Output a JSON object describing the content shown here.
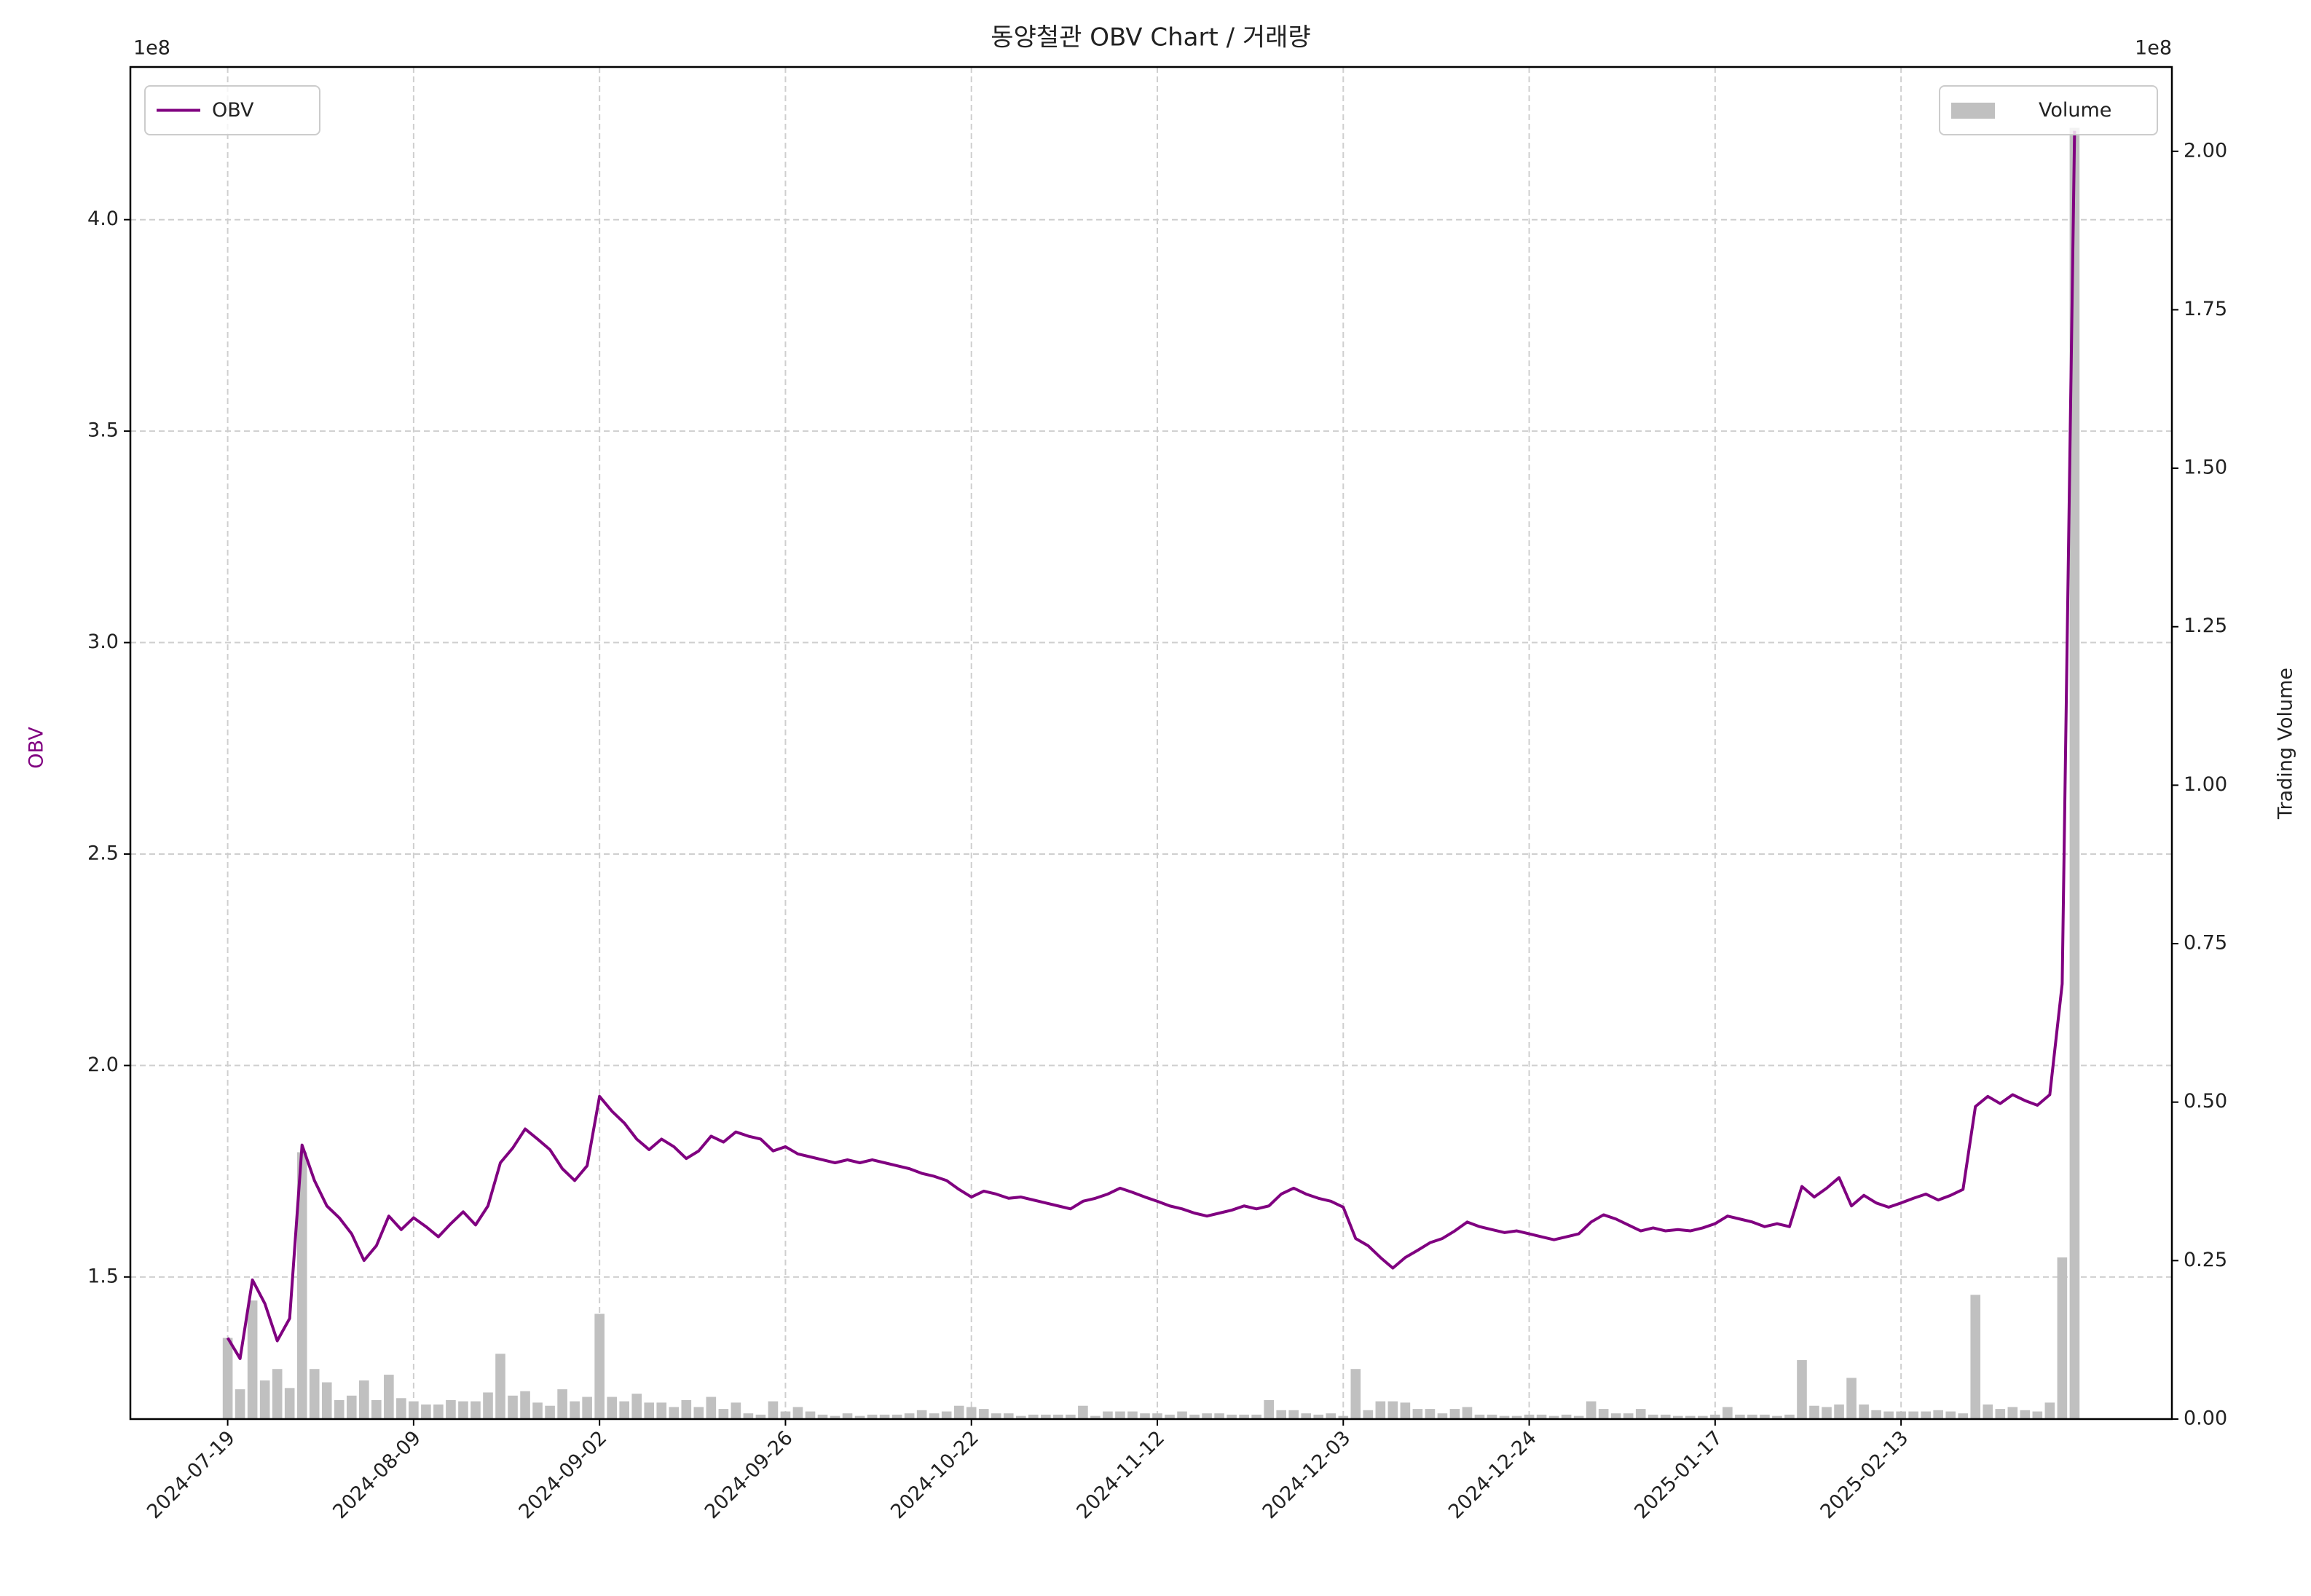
{
  "chart_data": {
    "type": "line",
    "title": "동양철관 OBV Chart / 거래량",
    "ylabel": "OBV",
    "ylabel_color": "#800080",
    "y2label": "Trading Volume",
    "y_offset_label": "1e8",
    "y2_offset_label": "1e8",
    "grid": true,
    "categories": [
      "2024-07-19",
      null,
      null,
      null,
      null,
      null,
      null,
      null,
      null,
      null,
      null,
      null,
      null,
      null,
      null,
      "2024-08-09",
      null,
      null,
      null,
      null,
      null,
      null,
      null,
      null,
      null,
      null,
      null,
      null,
      null,
      null,
      "2024-09-02",
      null,
      null,
      null,
      null,
      null,
      null,
      null,
      null,
      null,
      null,
      null,
      null,
      null,
      null,
      "2024-09-26",
      null,
      null,
      null,
      null,
      null,
      null,
      null,
      null,
      null,
      null,
      null,
      null,
      null,
      null,
      "2024-10-22",
      null,
      null,
      null,
      null,
      null,
      null,
      null,
      null,
      null,
      null,
      null,
      null,
      null,
      null,
      "2024-11-12",
      null,
      null,
      null,
      null,
      null,
      null,
      null,
      null,
      null,
      null,
      null,
      null,
      null,
      null,
      "2024-12-03",
      null,
      null,
      null,
      null,
      null,
      null,
      null,
      null,
      null,
      null,
      null,
      null,
      null,
      null,
      "2024-12-24",
      null,
      null,
      null,
      null,
      null,
      null,
      null,
      null,
      null,
      null,
      null,
      null,
      null,
      null,
      "2025-01-17",
      null,
      null,
      null,
      null,
      null,
      null,
      null,
      null,
      null,
      null,
      null,
      null,
      null,
      null,
      "2025-02-13",
      null,
      null,
      null,
      null,
      null,
      null,
      null,
      null,
      null,
      null,
      null,
      null,
      null,
      null
    ],
    "series": [
      {
        "name": "OBV",
        "type": "line",
        "color": "#800080",
        "legend": "upper left",
        "values": [
          135600000,
          130700000,
          149300000,
          143700000,
          134900000,
          140200000,
          181200000,
          172800000,
          166800000,
          164000000,
          160200000,
          153900000,
          157400000,
          164400000,
          161200000,
          164000000,
          161900000,
          159500000,
          162600000,
          165400000,
          162300000,
          166800000,
          177000000,
          180500000,
          185000000,
          182600000,
          180100000,
          175600000,
          172800000,
          176300000,
          192700000,
          189200000,
          186400000,
          182600000,
          180100000,
          182600000,
          180800000,
          178000000,
          179800000,
          183300000,
          181900000,
          184300000,
          183300000,
          182600000,
          179800000,
          180800000,
          179100000,
          178400000,
          177700000,
          177000000,
          177700000,
          177000000,
          177700000,
          177000000,
          176300000,
          175600000,
          174500000,
          173800000,
          172800000,
          170700000,
          168900000,
          170300000,
          169600000,
          168600000,
          168900000,
          168200000,
          167500000,
          166800000,
          166100000,
          167900000,
          168600000,
          169600000,
          171000000,
          170000000,
          168900000,
          167900000,
          166800000,
          166100000,
          165100000,
          164400000,
          165100000,
          165800000,
          166800000,
          166100000,
          166800000,
          169600000,
          171000000,
          169600000,
          168600000,
          167900000,
          166500000,
          159100000,
          157400000,
          154600000,
          152100000,
          154600000,
          156300000,
          158100000,
          159100000,
          160900000,
          163000000,
          161900000,
          161200000,
          160500000,
          160900000,
          160200000,
          159500000,
          158800000,
          159500000,
          160200000,
          163000000,
          164700000,
          163700000,
          162300000,
          160900000,
          161600000,
          160900000,
          161200000,
          160900000,
          161600000,
          162600000,
          164400000,
          163700000,
          163000000,
          161900000,
          162600000,
          161900000,
          171400000,
          168900000,
          171000000,
          173500000,
          166800000,
          169300000,
          167500000,
          166500000,
          167500000,
          168600000,
          169600000,
          168200000,
          169300000,
          170700000,
          190300000,
          192700000,
          191000000,
          193100000,
          191700000,
          190600000,
          193100000,
          219300000,
          421000000
        ]
      },
      {
        "name": "Volume",
        "type": "bar",
        "axis": "y2",
        "color": "#c0c0c0",
        "legend": "upper right",
        "values": [
          12800000,
          4700000,
          18700000,
          6100000,
          7900000,
          4900000,
          42100000,
          7900000,
          5800000,
          3000000,
          3700000,
          6100000,
          3000000,
          7000000,
          3300000,
          2800000,
          2300000,
          2300000,
          3000000,
          2800000,
          2800000,
          4200000,
          10300000,
          3700000,
          4400000,
          2600000,
          2100000,
          4700000,
          2800000,
          3500000,
          16600000,
          3500000,
          2800000,
          4000000,
          2600000,
          2600000,
          1900000,
          3000000,
          1900000,
          3500000,
          1600000,
          2600000,
          900000,
          700000,
          2800000,
          1200000,
          1900000,
          1200000,
          700000,
          500000,
          900000,
          500000,
          700000,
          700000,
          700000,
          900000,
          1400000,
          900000,
          1200000,
          2100000,
          1900000,
          1600000,
          900000,
          900000,
          500000,
          700000,
          700000,
          700000,
          700000,
          2100000,
          500000,
          1200000,
          1200000,
          1200000,
          900000,
          900000,
          700000,
          1200000,
          700000,
          900000,
          900000,
          700000,
          700000,
          700000,
          3000000,
          1400000,
          1400000,
          900000,
          700000,
          900000,
          500000,
          7900000,
          1400000,
          2800000,
          2800000,
          2600000,
          1600000,
          1600000,
          900000,
          1600000,
          1900000,
          700000,
          700000,
          500000,
          500000,
          700000,
          700000,
          500000,
          700000,
          500000,
          2800000,
          1600000,
          900000,
          900000,
          1600000,
          700000,
          700000,
          500000,
          500000,
          500000,
          700000,
          1900000,
          700000,
          700000,
          700000,
          500000,
          700000,
          9300000,
          2100000,
          1900000,
          2300000,
          6500000,
          2300000,
          1400000,
          1200000,
          1200000,
          1200000,
          1200000,
          1400000,
          1200000,
          900000,
          19600000,
          2300000,
          1600000,
          1900000,
          1400000,
          1200000,
          2600000,
          25500000,
          203700000
        ]
      }
    ],
    "ylim": [
      116400000,
      436100000
    ],
    "yticks": [
      {
        "value": 150000000,
        "label": "1.5"
      },
      {
        "value": 200000000,
        "label": "2.0"
      },
      {
        "value": 250000000,
        "label": "2.5"
      },
      {
        "value": 300000000,
        "label": "3.0"
      },
      {
        "value": 350000000,
        "label": "3.5"
      },
      {
        "value": 400000000,
        "label": "4.0"
      }
    ],
    "y2lim": [
      0,
      213300000
    ],
    "y2ticks": [
      {
        "value": 0,
        "label": "0.00"
      },
      {
        "value": 25000000,
        "label": "0.25"
      },
      {
        "value": 50000000,
        "label": "0.50"
      },
      {
        "value": 75000000,
        "label": "0.75"
      },
      {
        "value": 100000000,
        "label": "1.00"
      },
      {
        "value": 125000000,
        "label": "1.25"
      },
      {
        "value": 150000000,
        "label": "1.50"
      },
      {
        "value": 175000000,
        "label": "1.75"
      },
      {
        "value": 200000000,
        "label": "2.00"
      }
    ]
  }
}
